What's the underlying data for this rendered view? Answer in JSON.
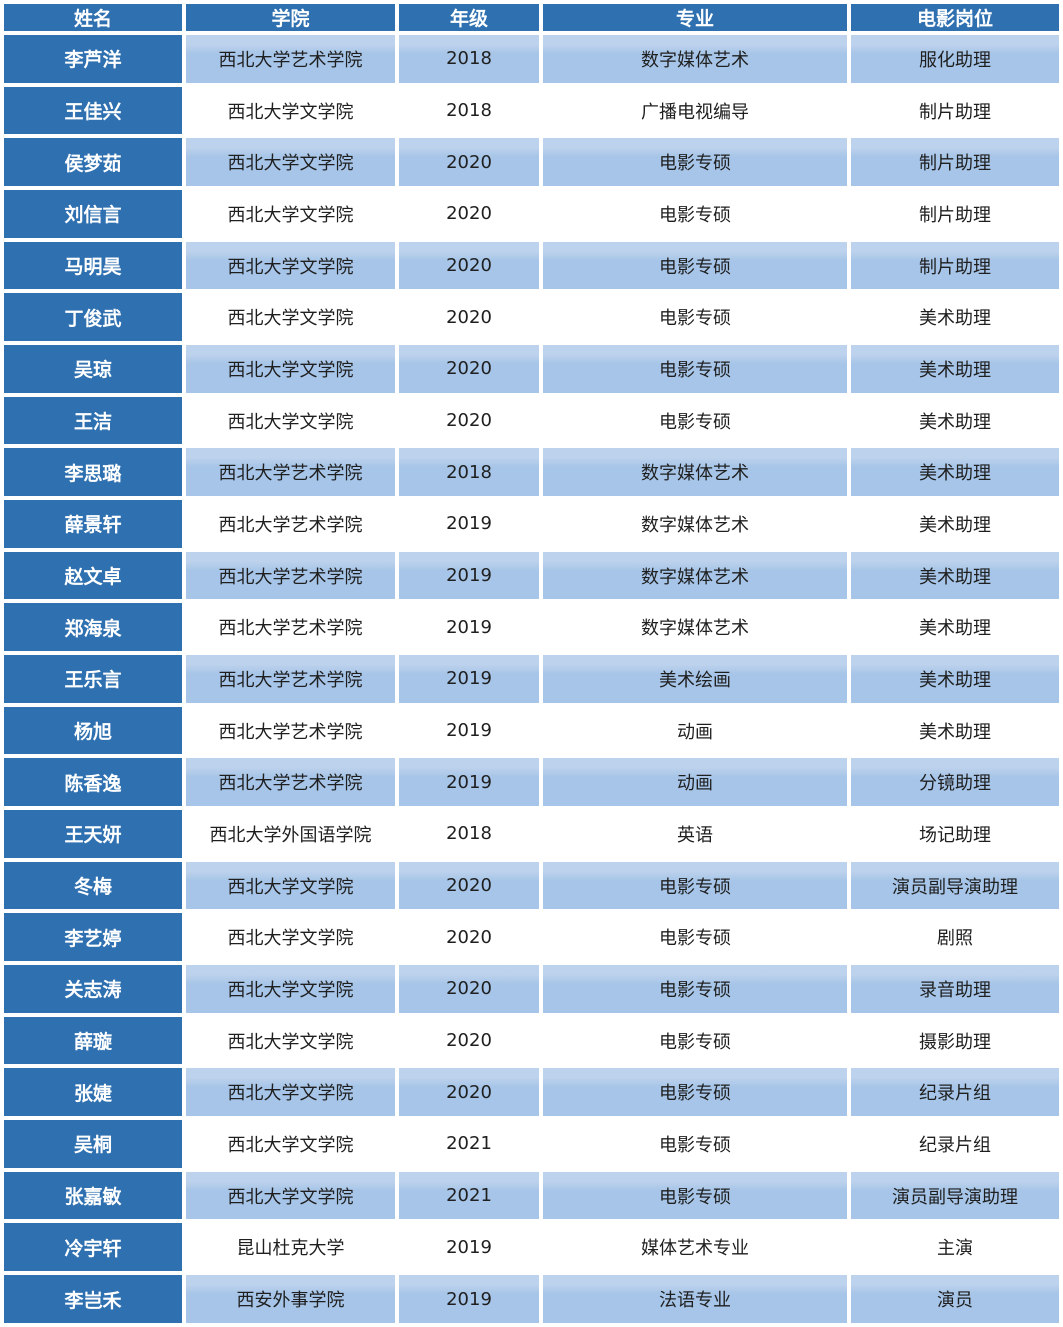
{
  "table": {
    "columns": [
      "姓名",
      "学院",
      "年级",
      "专业",
      "电影岗位"
    ],
    "rows": [
      [
        "李芦洋",
        "西北大学艺术学院",
        "2018",
        "数字媒体艺术",
        "服化助理"
      ],
      [
        "王佳兴",
        "西北大学文学院",
        "2018",
        "广播电视编导",
        "制片助理"
      ],
      [
        "侯梦茹",
        "西北大学文学院",
        "2020",
        "电影专硕",
        "制片助理"
      ],
      [
        "刘信言",
        "西北大学文学院",
        "2020",
        "电影专硕",
        "制片助理"
      ],
      [
        "马明昊",
        "西北大学文学院",
        "2020",
        "电影专硕",
        "制片助理"
      ],
      [
        "丁俊武",
        "西北大学文学院",
        "2020",
        "电影专硕",
        "美术助理"
      ],
      [
        "吴琼",
        "西北大学文学院",
        "2020",
        "电影专硕",
        "美术助理"
      ],
      [
        "王洁",
        "西北大学文学院",
        "2020",
        "电影专硕",
        "美术助理"
      ],
      [
        "李思璐",
        "西北大学艺术学院",
        "2018",
        "数字媒体艺术",
        "美术助理"
      ],
      [
        "薛景轩",
        "西北大学艺术学院",
        "2019",
        "数字媒体艺术",
        "美术助理"
      ],
      [
        "赵文卓",
        "西北大学艺术学院",
        "2019",
        "数字媒体艺术",
        "美术助理"
      ],
      [
        "郑海泉",
        "西北大学艺术学院",
        "2019",
        "数字媒体艺术",
        "美术助理"
      ],
      [
        "王乐言",
        "西北大学艺术学院",
        "2019",
        "美术绘画",
        "美术助理"
      ],
      [
        "杨旭",
        "西北大学艺术学院",
        "2019",
        "动画",
        "美术助理"
      ],
      [
        "陈香逸",
        "西北大学艺术学院",
        "2019",
        "动画",
        "分镜助理"
      ],
      [
        "王天妍",
        "西北大学外国语学院",
        "2018",
        "英语",
        "场记助理"
      ],
      [
        "冬梅",
        "西北大学文学院",
        "2020",
        "电影专硕",
        "演员副导演助理"
      ],
      [
        "李艺婷",
        "西北大学文学院",
        "2020",
        "电影专硕",
        "剧照"
      ],
      [
        "关志涛",
        "西北大学文学院",
        "2020",
        "电影专硕",
        "录音助理"
      ],
      [
        "薛璇",
        "西北大学文学院",
        "2020",
        "电影专硕",
        "摄影助理"
      ],
      [
        "张婕",
        "西北大学文学院",
        "2020",
        "电影专硕",
        "纪录片组"
      ],
      [
        "吴桐",
        "西北大学文学院",
        "2021",
        "电影专硕",
        "纪录片组"
      ],
      [
        "张嘉敏",
        "西北大学文学院",
        "2021",
        "电影专硕",
        "演员副导演助理"
      ],
      [
        "冷宇轩",
        "昆山杜克大学",
        "2019",
        "媒体艺术专业",
        "主演"
      ],
      [
        "李岂禾",
        "西安外事学院",
        "2019",
        "法语专业",
        "演员"
      ]
    ],
    "colors": {
      "header_bg": "#2f70b0",
      "stripe_top": "#bdd2ec",
      "stripe_bg": "#a6c5e8",
      "plain_bg": "#ffffff",
      "header_text": "#ffffff",
      "cell_text": "#1f1f1f"
    }
  }
}
